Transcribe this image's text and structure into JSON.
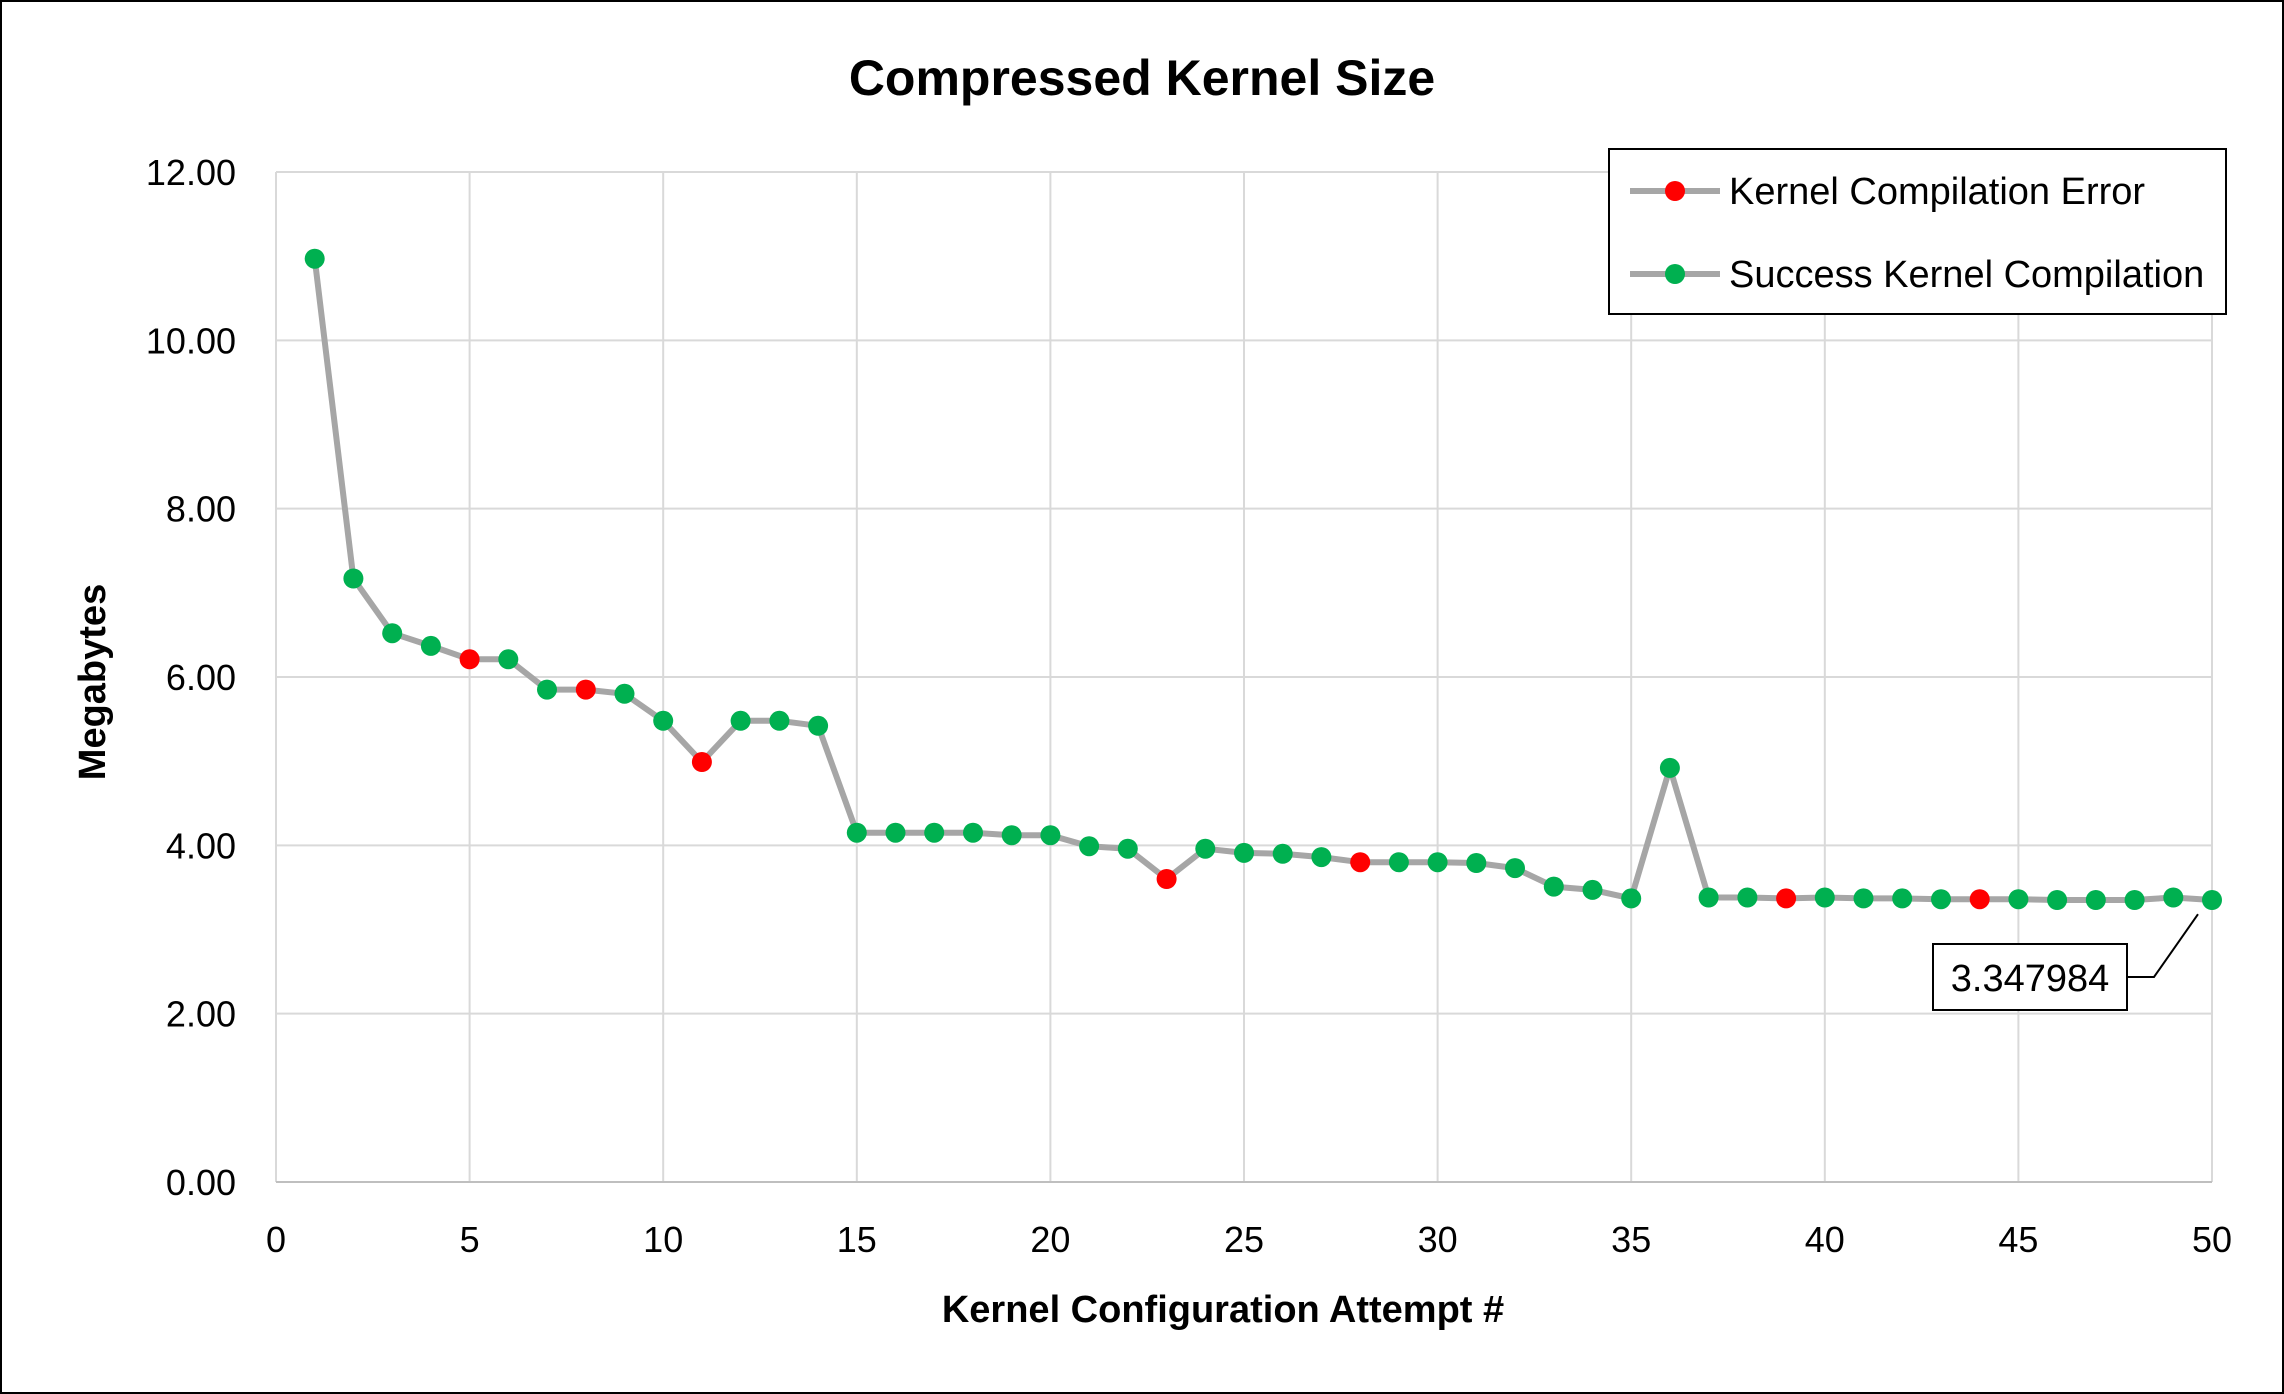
{
  "chart_data": {
    "type": "line",
    "title": "Compressed Kernel Size",
    "xlabel": "Kernel Configuration Attempt #",
    "ylabel": "Megabytes",
    "xlim": [
      0,
      50
    ],
    "ylim": [
      0,
      12
    ],
    "x_ticks": [
      "0",
      "5",
      "10",
      "15",
      "20",
      "25",
      "30",
      "35",
      "40",
      "45",
      "50"
    ],
    "y_ticks": [
      "0.00",
      "2.00",
      "4.00",
      "6.00",
      "8.00",
      "10.00",
      "12.00"
    ],
    "grid": true,
    "legend_position": "top-right",
    "line_color": "#a6a6a6",
    "legend": [
      {
        "label": "Kernel Compilation Error",
        "color": "#ff0000"
      },
      {
        "label": "Success Kernel Compilation",
        "color": "#00b050"
      }
    ],
    "x": [
      1,
      2,
      3,
      4,
      5,
      6,
      7,
      8,
      9,
      10,
      11,
      12,
      13,
      14,
      15,
      16,
      17,
      18,
      19,
      20,
      21,
      22,
      23,
      24,
      25,
      26,
      27,
      28,
      29,
      30,
      31,
      32,
      33,
      34,
      35,
      36,
      37,
      38,
      39,
      40,
      41,
      42,
      43,
      44,
      45,
      46,
      47,
      48,
      49,
      50
    ],
    "values": [
      10.97,
      7.17,
      6.52,
      6.37,
      6.21,
      6.21,
      5.85,
      5.85,
      5.8,
      5.48,
      4.99,
      5.48,
      5.48,
      5.42,
      4.15,
      4.15,
      4.15,
      4.15,
      4.12,
      4.12,
      3.99,
      3.96,
      3.6,
      3.96,
      3.91,
      3.9,
      3.86,
      3.8,
      3.8,
      3.8,
      3.79,
      3.73,
      3.51,
      3.47,
      3.37,
      4.92,
      3.38,
      3.38,
      3.37,
      3.38,
      3.37,
      3.37,
      3.36,
      3.36,
      3.36,
      3.35,
      3.35,
      3.35,
      3.38,
      3.35
    ],
    "status": [
      "success",
      "success",
      "success",
      "success",
      "error",
      "success",
      "success",
      "error",
      "success",
      "success",
      "error",
      "success",
      "success",
      "success",
      "success",
      "success",
      "success",
      "success",
      "success",
      "success",
      "success",
      "success",
      "error",
      "success",
      "success",
      "success",
      "success",
      "error",
      "success",
      "success",
      "success",
      "success",
      "success",
      "success",
      "success",
      "success",
      "success",
      "success",
      "error",
      "success",
      "success",
      "success",
      "success",
      "error",
      "success",
      "success",
      "success",
      "success",
      "success",
      "success"
    ],
    "annotation": {
      "x": 50,
      "y": 3.347984,
      "label": "3.347984"
    }
  }
}
